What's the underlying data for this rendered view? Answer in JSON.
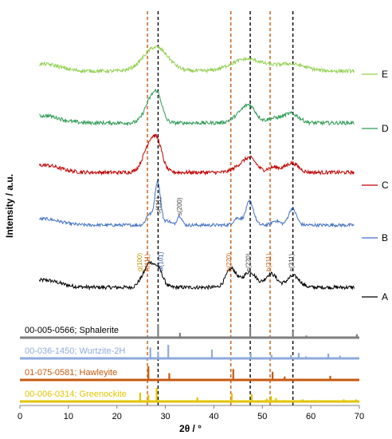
{
  "chart_data": {
    "type": "line",
    "xlabel": "2θ / °",
    "ylabel": "Intensity / a.u.",
    "xlim": [
      0,
      70
    ],
    "xticks": [
      "0",
      "10",
      "20",
      "30",
      "40",
      "50",
      "60",
      "70"
    ],
    "series": [
      {
        "name": "A",
        "color": "#000000",
        "peaks": [
          [
            25.1,
            0.35,
            0.8
          ],
          [
            26.6,
            0.95,
            0.8
          ],
          [
            28.4,
            0.95,
            1.0
          ],
          [
            43.6,
            0.9,
            1.1
          ],
          [
            47.4,
            0.75,
            1.3
          ],
          [
            51.8,
            0.65,
            1.2
          ],
          [
            56.4,
            0.55,
            1.3
          ]
        ]
      },
      {
        "name": "B",
        "color": "#4472c4",
        "peaks": [
          [
            26.6,
            0.6,
            0.6
          ],
          [
            28.4,
            2.5,
            0.6
          ],
          [
            30.5,
            0.25,
            0.6
          ],
          [
            32.9,
            0.55,
            0.5
          ],
          [
            44.9,
            0.4,
            0.8
          ],
          [
            47.4,
            1.35,
            0.8
          ],
          [
            52.8,
            0.25,
            0.8
          ],
          [
            56.2,
            0.95,
            0.8
          ]
        ]
      },
      {
        "name": "C",
        "color": "#c00000",
        "peaks": [
          [
            27.2,
            1.6,
            1.5
          ],
          [
            28.6,
            0.5,
            0.8
          ],
          [
            45.7,
            0.35,
            1.5
          ],
          [
            47.7,
            0.55,
            1.2
          ],
          [
            52.3,
            0.25,
            1.3
          ],
          [
            56.1,
            0.45,
            1.3
          ]
        ]
      },
      {
        "name": "D",
        "color": "#2e9b53",
        "peaks": [
          [
            27.3,
            1.25,
            1.4
          ],
          [
            28.6,
            0.6,
            0.8
          ],
          [
            45.6,
            0.4,
            1.6
          ],
          [
            47.5,
            0.65,
            1.3
          ],
          [
            52.2,
            0.2,
            1.4
          ],
          [
            55.9,
            0.45,
            1.6
          ]
        ]
      },
      {
        "name": "E",
        "color": "#92d050",
        "peaks": [
          [
            28.0,
            1.2,
            2.5
          ],
          [
            45.9,
            0.4,
            3.0
          ],
          [
            48.4,
            0.25,
            3.0
          ],
          [
            55.8,
            0.35,
            3.0
          ]
        ]
      }
    ],
    "peak_labels": [
      {
        "text": "g(100)",
        "color": "#bf9000",
        "x": 25.0
      },
      {
        "text": "h(111)",
        "color": "#c55a11",
        "x": 26.5
      },
      {
        "text": "w(101)",
        "color": "#2f5597",
        "x": 29.3
      },
      {
        "text": "h(220)",
        "color": "#c55a11",
        "x": 43.4
      },
      {
        "text": "s(220)",
        "color": "#404040",
        "x": 47.4
      },
      {
        "text": "h(311)",
        "color": "#c55a11",
        "x": 51.6
      },
      {
        "text": "s(311)",
        "color": "#404040",
        "x": 56.3
      },
      {
        "text": "s(111)",
        "color": "#404040",
        "x": 28.5
      },
      {
        "text": "s(200)",
        "color": "#404040",
        "x": 32.9
      }
    ],
    "reference_lines": [
      {
        "x": 26.3,
        "color": "#c55a11"
      },
      {
        "x": 28.5,
        "color": "#000000"
      },
      {
        "x": 43.5,
        "color": "#c55a11"
      },
      {
        "x": 47.5,
        "color": "#000000"
      },
      {
        "x": 51.6,
        "color": "#c55a11"
      },
      {
        "x": 56.3,
        "color": "#000000"
      }
    ],
    "references": [
      {
        "label": "00-005-0566; Sphalerite",
        "color": "#7f7f7f",
        "sticks": [
          [
            28.5,
            1.0
          ],
          [
            33.0,
            0.35
          ],
          [
            47.5,
            0.75
          ],
          [
            56.3,
            0.5
          ],
          [
            59.1,
            0.15
          ],
          [
            69.5,
            0.25
          ]
        ]
      },
      {
        "label": "00-036-1450; Wurtzite-2H",
        "color": "#8faadc",
        "sticks": [
          [
            26.9,
            0.8
          ],
          [
            28.5,
            0.5
          ],
          [
            30.6,
            1.0
          ],
          [
            39.6,
            0.65
          ],
          [
            47.6,
            0.4
          ],
          [
            51.9,
            0.25
          ],
          [
            55.9,
            0.25
          ],
          [
            57.5,
            0.4
          ],
          [
            59.0,
            0.15
          ],
          [
            63.6,
            0.35
          ],
          [
            66.0,
            0.2
          ]
        ]
      },
      {
        "label": "01-075-0581; Hawleyite",
        "color": "#c55a11",
        "sticks": [
          [
            26.5,
            1.0
          ],
          [
            30.8,
            0.5
          ],
          [
            44.0,
            0.8
          ],
          [
            52.1,
            0.6
          ],
          [
            54.6,
            0.25
          ],
          [
            64.0,
            0.3
          ]
        ]
      },
      {
        "label": "00-006-0314; Greenockite",
        "color": "#e2c500",
        "sticks": [
          [
            24.8,
            0.65
          ],
          [
            26.5,
            0.5
          ],
          [
            28.2,
            1.0
          ],
          [
            36.6,
            0.3
          ],
          [
            43.7,
            0.6
          ],
          [
            47.8,
            0.55
          ],
          [
            50.9,
            0.2
          ],
          [
            51.8,
            0.4
          ],
          [
            52.8,
            0.25
          ],
          [
            54.6,
            0.1
          ],
          [
            58.3,
            0.15
          ],
          [
            60.8,
            0.1
          ],
          [
            66.8,
            0.15
          ],
          [
            69.3,
            0.15
          ]
        ]
      }
    ]
  }
}
